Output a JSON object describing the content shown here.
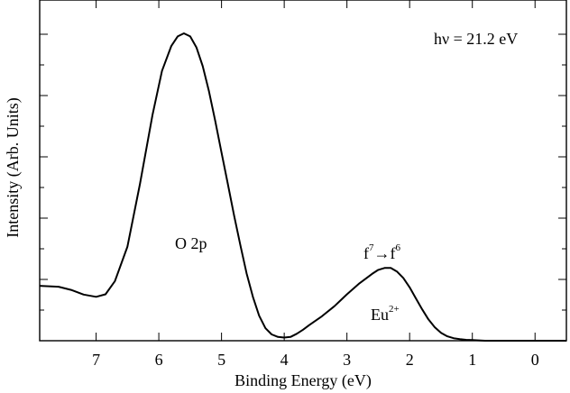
{
  "chart_data": {
    "type": "line",
    "title": "",
    "xlabel": "Binding Energy (eV)",
    "ylabel": "Intensity (Arb. Units)",
    "x_reversed": true,
    "xlim": [
      7.9,
      -0.5
    ],
    "ylim": [
      0,
      1
    ],
    "x_ticks": [
      7,
      6,
      5,
      4,
      3,
      2,
      1,
      0
    ],
    "x_tick_labels": [
      "7",
      "6",
      "5",
      "4",
      "3",
      "2",
      "1",
      "0"
    ],
    "y_tick_labels": [],
    "grid": false,
    "series": [
      {
        "x": [
          7.9,
          7.6,
          7.4,
          7.2,
          7.0,
          6.85,
          6.7,
          6.5,
          6.3,
          6.1,
          5.95,
          5.8,
          5.7,
          5.6,
          5.5,
          5.4,
          5.3,
          5.2,
          5.1,
          5.0,
          4.9,
          4.8,
          4.7,
          4.6,
          4.5,
          4.4,
          4.3,
          4.2,
          4.1,
          4.0,
          3.9,
          3.8,
          3.7,
          3.6,
          3.4,
          3.2,
          3.0,
          2.8,
          2.6,
          2.5,
          2.4,
          2.3,
          2.2,
          2.1,
          2.0,
          1.9,
          1.8,
          1.7,
          1.6,
          1.5,
          1.4,
          1.3,
          1.2,
          1.1,
          1.0,
          0.8,
          0.5,
          0.0,
          -0.5
        ],
        "y": [
          0.175,
          0.172,
          0.162,
          0.147,
          0.14,
          0.148,
          0.19,
          0.3,
          0.5,
          0.72,
          0.86,
          0.94,
          0.97,
          0.98,
          0.97,
          0.935,
          0.875,
          0.795,
          0.7,
          0.6,
          0.5,
          0.4,
          0.305,
          0.215,
          0.14,
          0.08,
          0.04,
          0.02,
          0.012,
          0.01,
          0.012,
          0.022,
          0.035,
          0.05,
          0.078,
          0.11,
          0.148,
          0.183,
          0.213,
          0.226,
          0.232,
          0.232,
          0.22,
          0.2,
          0.17,
          0.135,
          0.1,
          0.068,
          0.043,
          0.025,
          0.014,
          0.008,
          0.005,
          0.003,
          0.002,
          0.0,
          0.0,
          0.0,
          0.0
        ]
      }
    ],
    "annotations": {
      "photon_prefix": "hν = ",
      "photon_value": "21.2 eV",
      "peak_main": "O 2p",
      "f_base_1": "f",
      "f_sup_1": "7",
      "arrow": "→",
      "f_base_2": "f",
      "f_sup_2": "6",
      "eu_base": "Eu",
      "eu_sup": "2+"
    }
  }
}
